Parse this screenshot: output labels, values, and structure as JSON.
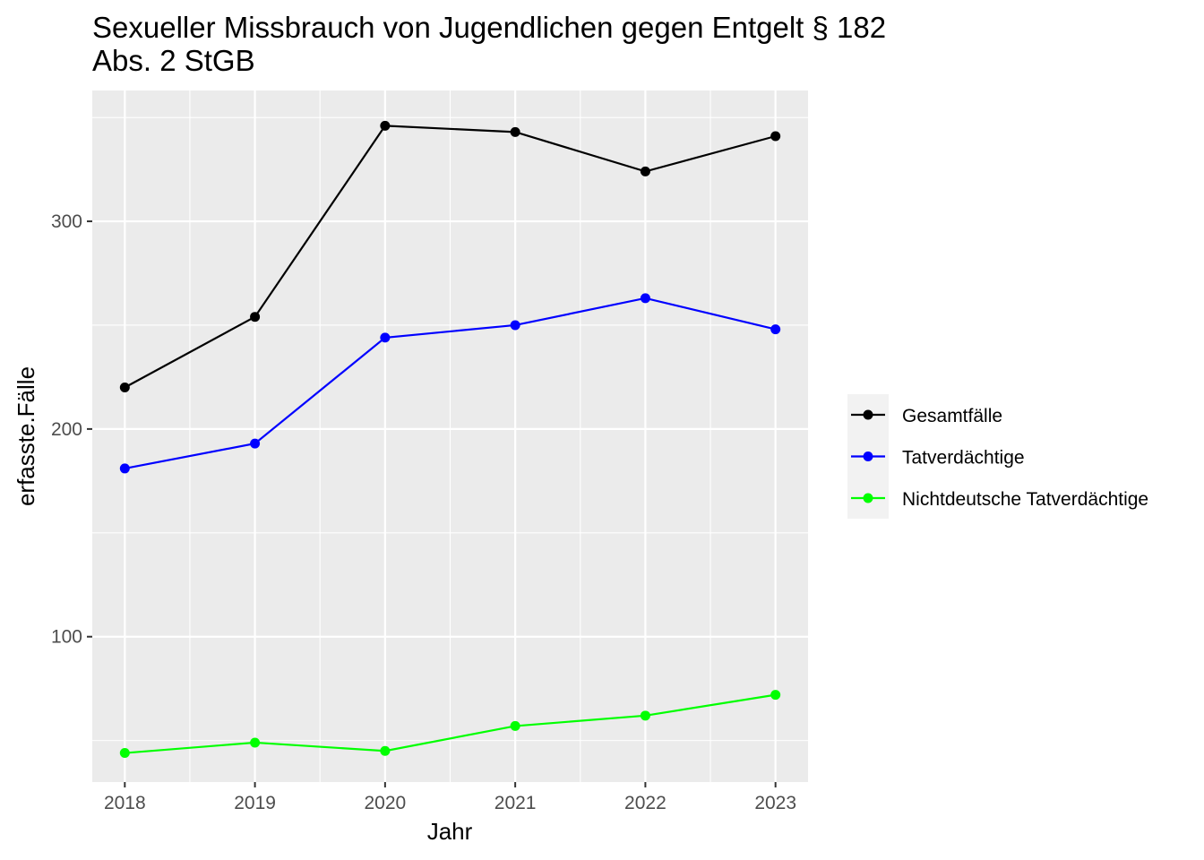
{
  "chart_data": {
    "type": "line",
    "title": "Sexueller Missbrauch von Jugendlichen gegen Entgelt § 182",
    "subtitle": "Abs. 2 StGB",
    "xlabel": "Jahr",
    "ylabel": "erfasste.Fälle",
    "x": [
      2018,
      2019,
      2020,
      2021,
      2022,
      2023
    ],
    "xlim": [
      2017.75,
      2023.25
    ],
    "ylim": [
      30,
      363
    ],
    "y_ticks": [
      100,
      200,
      300
    ],
    "grid": true,
    "legend_position": "right",
    "series": [
      {
        "name": "Gesamtfälle",
        "color": "#000000",
        "values": [
          220,
          254,
          346,
          343,
          324,
          341
        ]
      },
      {
        "name": "Tatverdächtige",
        "color": "#0000ff",
        "values": [
          181,
          193,
          244,
          250,
          263,
          248
        ]
      },
      {
        "name": "Nichtdeutsche Tatverdächtige",
        "color": "#00ff00",
        "values": [
          44,
          49,
          45,
          57,
          62,
          72
        ]
      }
    ]
  }
}
